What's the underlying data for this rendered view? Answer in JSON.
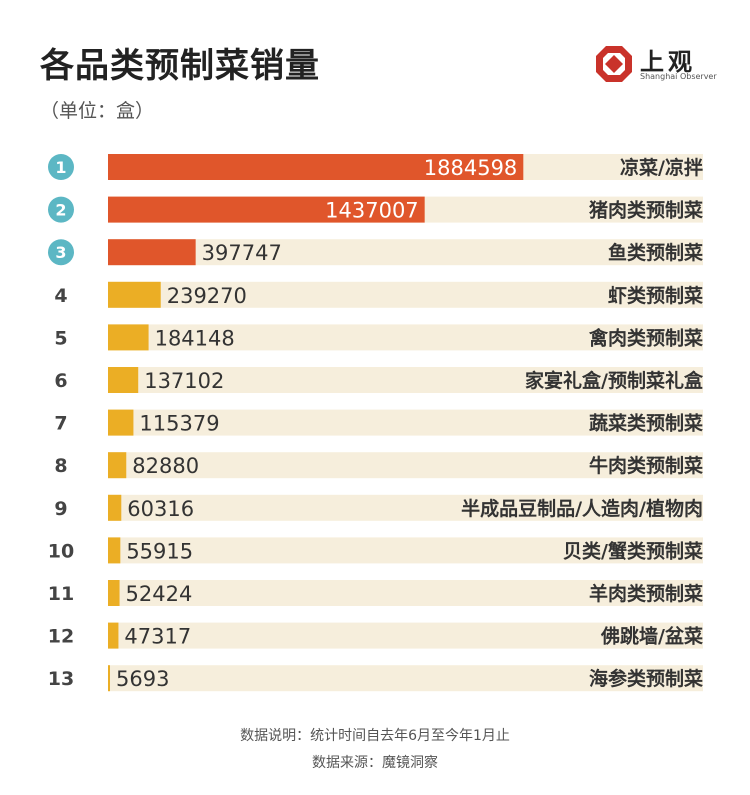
{
  "header": {
    "title": "各品类预制菜销量",
    "unit": "（单位：盒）"
  },
  "logo": {
    "name_cn": "上观",
    "name_en": "Shanghai Observer"
  },
  "footer": {
    "note": "数据说明：统计时间自去年6月至今年1月止",
    "source": "数据来源：魔镜洞察"
  },
  "colors": {
    "top_bar": "#E0562B",
    "other_bar": "#EBAE25",
    "track": "#F6EEDC",
    "rank_circle": "#5CB7C4"
  },
  "chart_data": {
    "type": "bar",
    "orientation": "horizontal",
    "title": "各品类预制菜销量",
    "unit": "（单位：盒）",
    "categories": [
      "凉菜/凉拌",
      "猪肉类预制菜",
      "鱼类预制菜",
      "虾类预制菜",
      "禽肉类预制菜",
      "家宴礼盒/预制菜礼盒",
      "蔬菜类预制菜",
      "牛肉类预制菜",
      "半成品豆制品/人造肉/植物肉",
      "贝类/蟹类预制菜",
      "羊肉类预制菜",
      "佛跳墙/盆菜",
      "海参类预制菜"
    ],
    "ranks": [
      "1",
      "2",
      "3",
      "4",
      "5",
      "6",
      "7",
      "8",
      "9",
      "10",
      "11",
      "12",
      "13"
    ],
    "values": [
      1884598,
      1437007,
      397747,
      239270,
      184148,
      137102,
      115379,
      82880,
      60316,
      55915,
      52424,
      47317,
      5693
    ],
    "labels": [
      "1884598",
      "1437007",
      "397747",
      "239270",
      "184148",
      "137102",
      "115379",
      "82880",
      "60316",
      "55915",
      "52424",
      "47317",
      "5693"
    ],
    "highlighted_top": 3,
    "xlim": [
      0,
      2700000
    ],
    "grid": false,
    "legend": "none"
  }
}
